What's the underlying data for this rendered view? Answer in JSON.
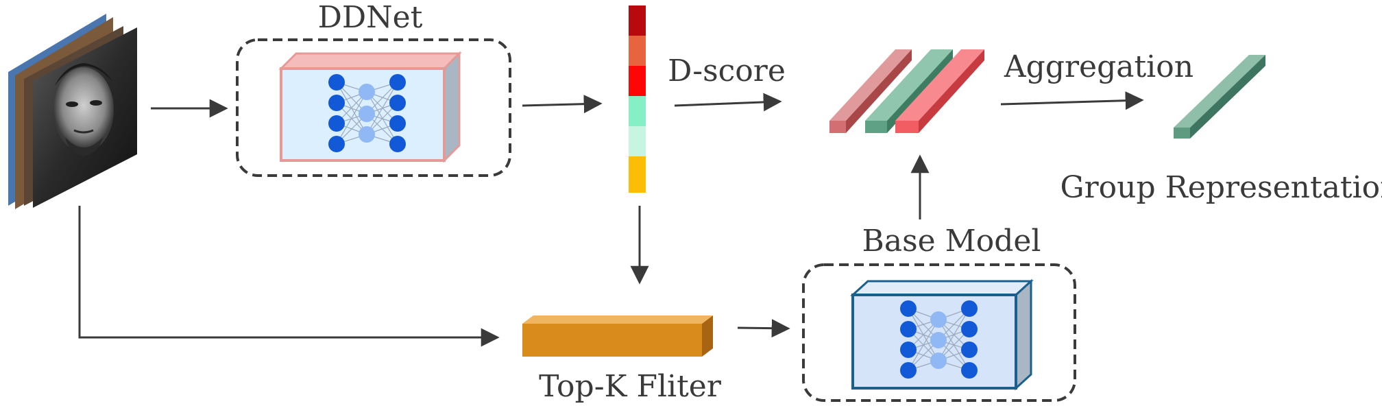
{
  "labels": {
    "ddnet": "DDNet",
    "d_score": "D-score",
    "aggregation": "Aggregation",
    "group_representation": "Group Representation",
    "base_model": "Base Model",
    "top_k_filter": "Top-K Fliter"
  },
  "colors": {
    "arrow": "#3a3a3a",
    "dashed_border": "#3a3a3a",
    "ddnet_box_fill": "#dcefff",
    "ddnet_box_edge": "#e59a98",
    "base_box_fill": "#d6e4f9",
    "base_box_edge": "#1a5f8e",
    "neuron_dark": "#1259d8",
    "neuron_light": "#8fb8f5",
    "filter_bar": "#d98b1c",
    "feature_red": "#d36f72",
    "feature_green": "#5ea184",
    "feature_bright_red": "#f25c63",
    "group_feature": "#5f9b80"
  },
  "score_bar_colors": [
    "#b8090f",
    "#e8643e",
    "#ff0606",
    "#84f0c4",
    "#c6f6e2",
    "#fbbd06"
  ],
  "icons": {
    "input_images": "face-image-stack-icon",
    "ddnet_network": "neural-network-icon",
    "base_network": "neural-network-icon"
  }
}
